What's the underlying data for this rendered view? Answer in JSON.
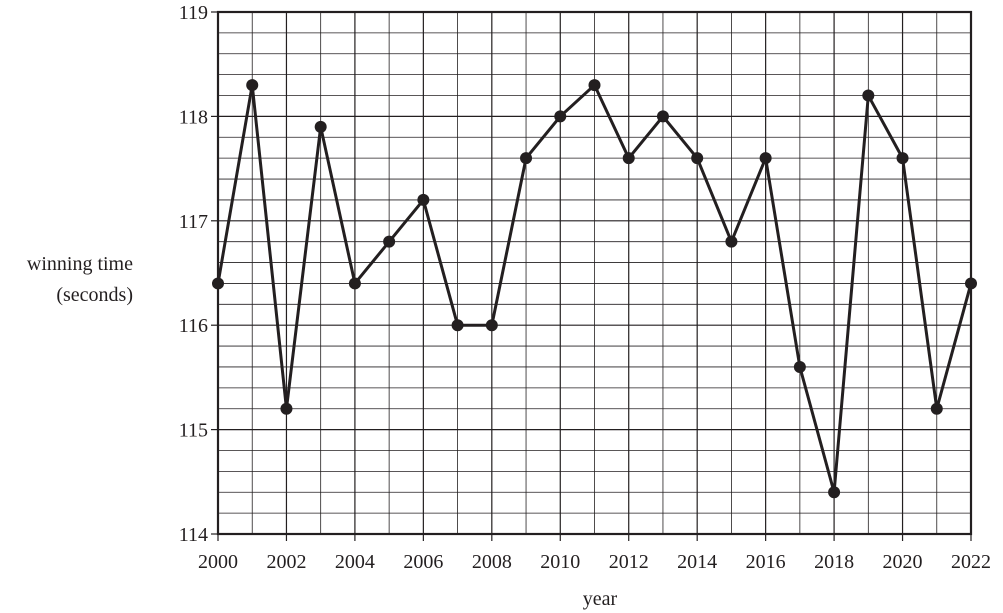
{
  "chart_data": {
    "type": "line",
    "xlabel": "year",
    "ylabel": [
      "winning time",
      "(seconds)"
    ],
    "xlim": [
      2000,
      2022
    ],
    "ylim": [
      114,
      119
    ],
    "x_ticks": [
      2000,
      2002,
      2004,
      2006,
      2008,
      2010,
      2012,
      2014,
      2016,
      2018,
      2020,
      2022
    ],
    "y_ticks": [
      114,
      115,
      116,
      117,
      118,
      119
    ],
    "x_minor_step": 1,
    "y_minor_step": 0.2,
    "grid": true,
    "series": [
      {
        "x": [
          2000,
          2001,
          2002,
          2003,
          2004,
          2005,
          2006,
          2007,
          2008,
          2009,
          2010,
          2011,
          2012,
          2013,
          2014,
          2015,
          2016,
          2017,
          2018,
          2019,
          2020,
          2021,
          2022
        ],
        "y": [
          116.4,
          118.3,
          115.2,
          117.9,
          116.4,
          116.8,
          117.2,
          116.0,
          116.0,
          117.6,
          118.0,
          118.3,
          117.6,
          118.0,
          117.6,
          116.8,
          117.6,
          115.6,
          114.4,
          118.2,
          117.6,
          115.2,
          116.4
        ]
      }
    ]
  }
}
